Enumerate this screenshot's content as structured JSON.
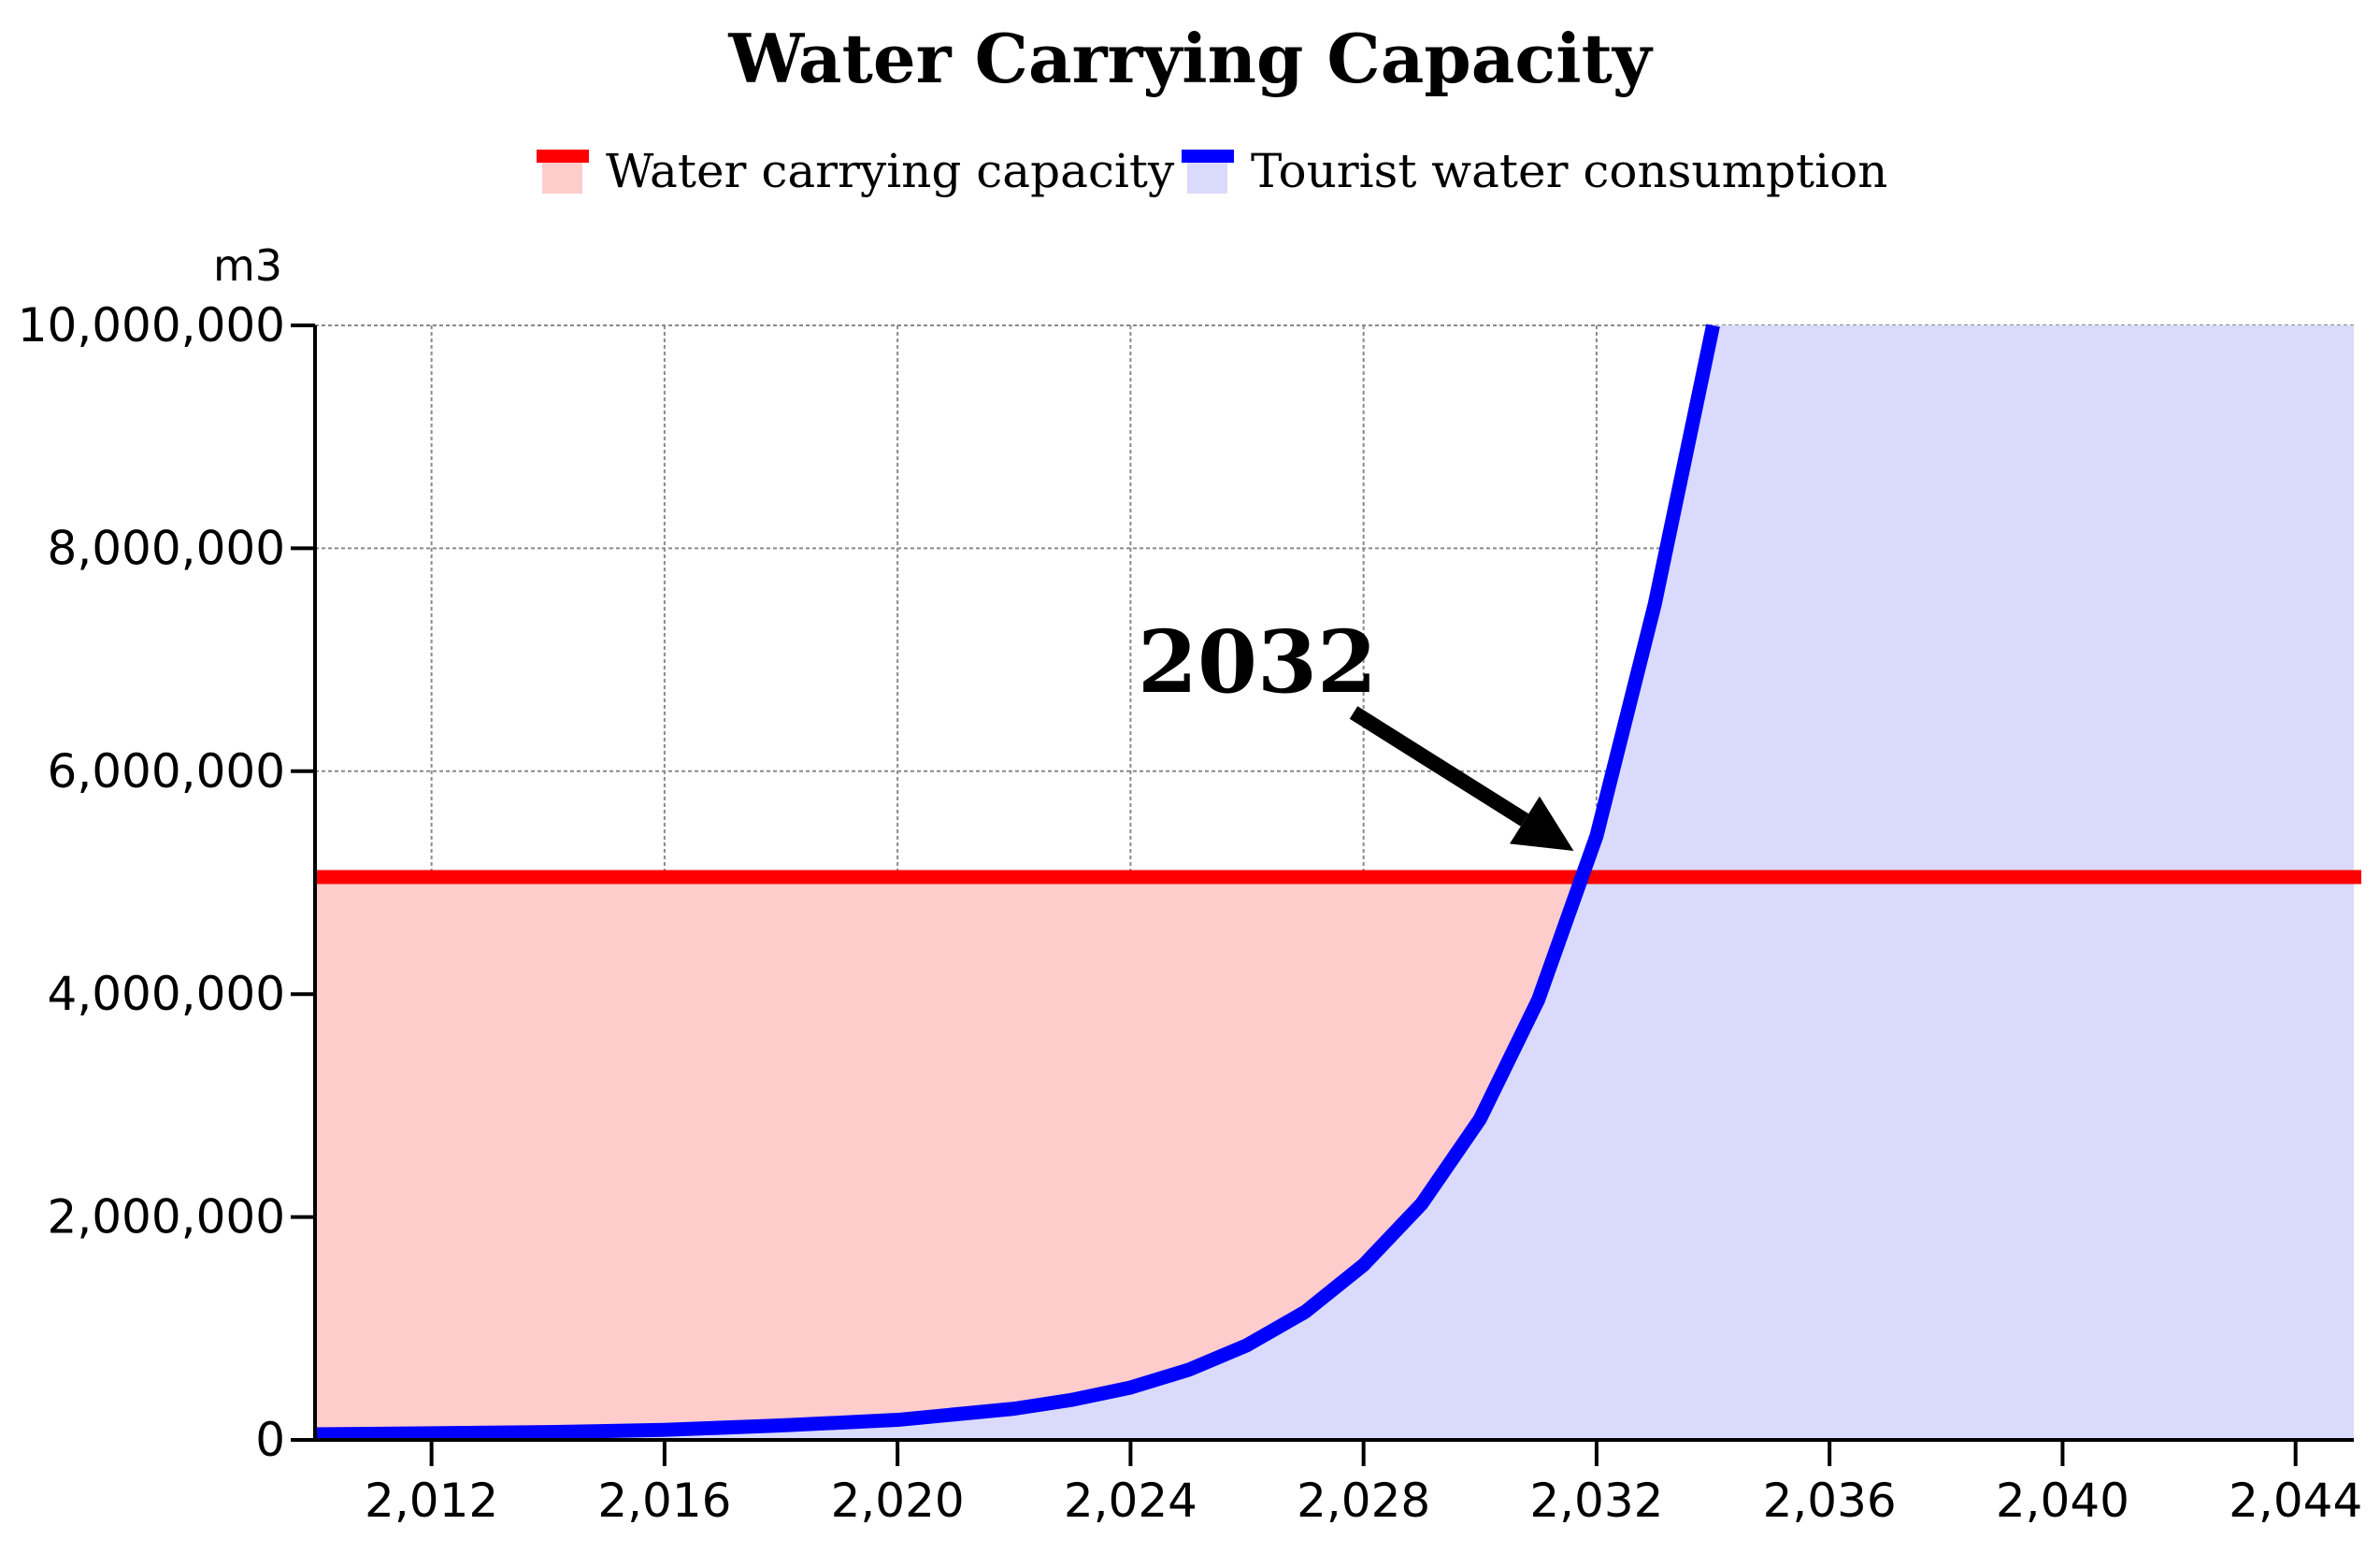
{
  "chart_data": {
    "type": "area",
    "title": "Water Carrying Capacity",
    "ylabel": "m3",
    "xlabel": "",
    "xlim": [
      2010,
      2045
    ],
    "ylim": [
      0,
      10000000
    ],
    "x_ticks": [
      2012,
      2016,
      2020,
      2024,
      2028,
      2032,
      2036,
      2040,
      2044
    ],
    "x_tick_labels": [
      "2,012",
      "2,016",
      "2,020",
      "2,024",
      "2,028",
      "2,032",
      "2,036",
      "2,040",
      "2,044"
    ],
    "y_ticks": [
      0,
      2000000,
      4000000,
      6000000,
      8000000,
      10000000
    ],
    "y_tick_labels": [
      "0",
      "2,000,000",
      "4,000,000",
      "6,000,000",
      "8,000,000",
      "10,000,000"
    ],
    "grid": true,
    "legend_position": "top-center",
    "series": [
      {
        "name": "Water carrying capacity",
        "color": "#ff0000",
        "fill_color": "#ffcccc",
        "x": [
          2010,
          2045
        ],
        "values": [
          5050000,
          5050000
        ]
      },
      {
        "name": "Tourist water consumption",
        "color": "#0000ff",
        "fill_color": "#dadafc",
        "x": [
          2010,
          2012,
          2014,
          2016,
          2018,
          2020,
          2022,
          2023,
          2024,
          2025,
          2026,
          2027,
          2028,
          2029,
          2030,
          2031,
          2032,
          2033,
          2034
        ],
        "values": [
          50000,
          60000,
          70000,
          90000,
          130000,
          180000,
          280000,
          360000,
          470000,
          630000,
          850000,
          1150000,
          1570000,
          2120000,
          2880000,
          3950000,
          5420000,
          7500000,
          10000000
        ]
      }
    ],
    "annotations": [
      {
        "text": "2032",
        "target_x": 2031.8,
        "target_y": 5050000
      }
    ]
  }
}
